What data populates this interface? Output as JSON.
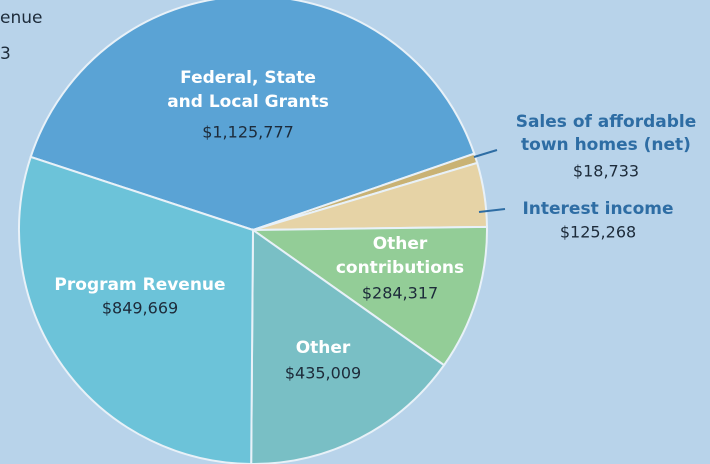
{
  "chart_data": {
    "type": "pie",
    "title": [
      "enue",
      "3"
    ],
    "categories": [
      [
        "Federal, State",
        "and Local Grants"
      ],
      [
        "Sales of affordable",
        "town homes (net)"
      ],
      [
        "Interest income"
      ],
      [
        "Other",
        "contributions"
      ],
      [
        "Other"
      ],
      [
        "Program Revenue"
      ]
    ],
    "values": [
      1125777,
      18733,
      125268,
      284317,
      435009,
      849669
    ],
    "value_labels": [
      "$1,125,777",
      "$18,733",
      "$125,268",
      "$284,317",
      "$435,009",
      "$849,669"
    ],
    "colors": [
      "#5aa3d5",
      "#c9b274",
      "#e6d3a6",
      "#93cd97",
      "#79bfc5",
      "#6cc3d9"
    ]
  }
}
